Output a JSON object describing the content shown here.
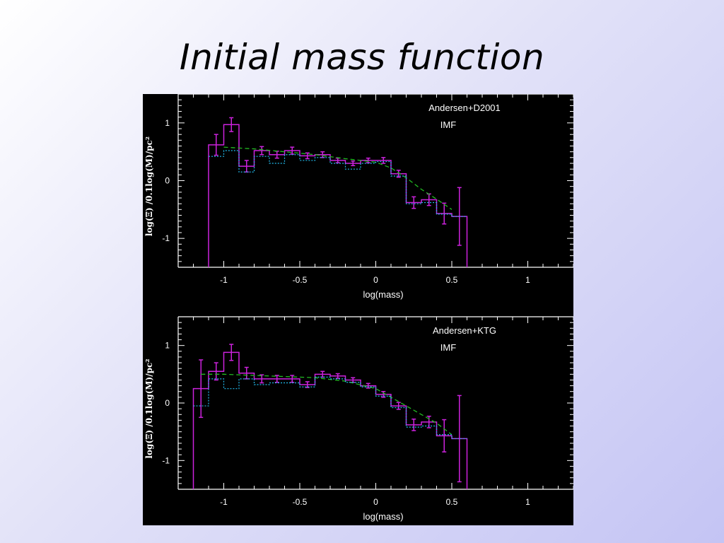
{
  "slide": {
    "title": "Initial mass function"
  },
  "colors": {
    "background": "#000000",
    "axes": "#ffffff",
    "histogram": "#cc22dd",
    "model_dashed": "#22bb22",
    "completeness_dotted": "#22bbee"
  },
  "chart_data": [
    {
      "type": "line",
      "annotation": "Andersen+D2001",
      "subannotation": "IMF",
      "xlabel": "log(mass)",
      "ylabel": "log(Ξ) /0.1log(M)/pc²",
      "xlim": [
        -1.3,
        1.3
      ],
      "ylim": [
        -1.5,
        1.5
      ],
      "xticks": [
        -1,
        -0.5,
        0,
        0.5,
        1
      ],
      "xticklabels": [
        "-1",
        "-0.5",
        "0",
        "0.5",
        "1"
      ],
      "yticks": [
        1,
        0,
        -1
      ],
      "yticklabels": [
        "1",
        "0",
        "-1"
      ],
      "grid": false,
      "series": [
        {
          "style": "histogram",
          "bin_edges": [
            -1.1,
            -1.0,
            -0.9,
            -0.8,
            -0.7,
            -0.6,
            -0.5,
            -0.4,
            -0.3,
            -0.2,
            -0.1,
            0.0,
            0.1,
            0.2,
            0.3,
            0.4,
            0.5,
            0.6
          ],
          "values": [
            0.62,
            0.97,
            0.25,
            0.52,
            0.45,
            0.52,
            0.43,
            0.45,
            0.35,
            0.3,
            0.35,
            0.35,
            0.12,
            -0.38,
            -0.33,
            -0.57,
            -0.62
          ],
          "errors": [
            0.18,
            0.12,
            0.1,
            0.07,
            0.06,
            0.06,
            0.05,
            0.05,
            0.04,
            0.04,
            0.04,
            0.05,
            0.06,
            0.1,
            0.1,
            0.18,
            0.5
          ],
          "drop_to": -1.5
        },
        {
          "style": "dashed",
          "x": [
            -1.0,
            -0.8,
            -0.6,
            -0.4,
            -0.2,
            0.0,
            0.1,
            0.2,
            0.3,
            0.4,
            0.5
          ],
          "y": [
            0.58,
            0.55,
            0.5,
            0.45,
            0.38,
            0.32,
            0.22,
            0.05,
            -0.15,
            -0.32,
            -0.5
          ]
        },
        {
          "style": "dotted-histogram",
          "bin_edges": [
            -1.1,
            -1.0,
            -0.9,
            -0.8,
            -0.7,
            -0.6,
            -0.5,
            -0.4,
            -0.3,
            -0.2,
            -0.1,
            0.0,
            0.1,
            0.2,
            0.3,
            0.4,
            0.5,
            0.6
          ],
          "values": [
            0.42,
            0.52,
            0.15,
            0.42,
            0.3,
            0.45,
            0.35,
            0.4,
            0.3,
            0.2,
            0.3,
            0.33,
            0.08,
            -0.4,
            -0.38,
            -0.58,
            -0.62
          ]
        }
      ]
    },
    {
      "type": "line",
      "annotation": "Andersen+KTG",
      "subannotation": "IMF",
      "xlabel": "log(mass)",
      "ylabel": "log(Ξ) /0.1log(M)/pc²",
      "xlim": [
        -1.3,
        1.3
      ],
      "ylim": [
        -1.5,
        1.5
      ],
      "xticks": [
        -1,
        -0.5,
        0,
        0.5,
        1
      ],
      "xticklabels": [
        "-1",
        "-0.5",
        "0",
        "0.5",
        "1"
      ],
      "yticks": [
        1,
        0,
        -1
      ],
      "yticklabels": [
        "1",
        "0",
        "-1"
      ],
      "grid": false,
      "series": [
        {
          "style": "histogram",
          "bin_edges": [
            -1.2,
            -1.1,
            -1.0,
            -0.9,
            -0.8,
            -0.7,
            -0.6,
            -0.5,
            -0.4,
            -0.3,
            -0.2,
            -0.1,
            0.0,
            0.1,
            0.2,
            0.3,
            0.4,
            0.5,
            0.6
          ],
          "values": [
            0.25,
            0.55,
            0.88,
            0.52,
            0.42,
            0.42,
            0.42,
            0.32,
            0.5,
            0.47,
            0.4,
            0.3,
            0.15,
            -0.05,
            -0.38,
            -0.33,
            -0.57,
            -0.62
          ],
          "errors": [
            0.5,
            0.15,
            0.14,
            0.1,
            0.07,
            0.06,
            0.06,
            0.05,
            0.05,
            0.04,
            0.04,
            0.04,
            0.05,
            0.06,
            0.1,
            0.1,
            0.28,
            0.75
          ],
          "drop_to": -1.5
        },
        {
          "style": "dashed",
          "x": [
            -1.15,
            -1.0,
            -0.8,
            -0.6,
            -0.4,
            -0.2,
            0.0,
            0.1,
            0.2,
            0.3,
            0.4,
            0.5
          ],
          "y": [
            0.5,
            0.5,
            0.48,
            0.46,
            0.44,
            0.38,
            0.25,
            0.1,
            -0.05,
            -0.2,
            -0.35,
            -0.55
          ]
        },
        {
          "style": "dotted-histogram",
          "bin_edges": [
            -1.2,
            -1.1,
            -1.0,
            -0.9,
            -0.8,
            -0.7,
            -0.6,
            -0.5,
            -0.4,
            -0.3,
            -0.2,
            -0.1,
            0.0,
            0.1,
            0.2,
            0.3,
            0.4,
            0.5,
            0.6
          ],
          "values": [
            -0.05,
            0.42,
            0.25,
            0.42,
            0.32,
            0.35,
            0.35,
            0.28,
            0.45,
            0.42,
            0.36,
            0.28,
            0.12,
            -0.08,
            -0.42,
            -0.4,
            -0.55,
            -0.62
          ]
        }
      ]
    }
  ]
}
